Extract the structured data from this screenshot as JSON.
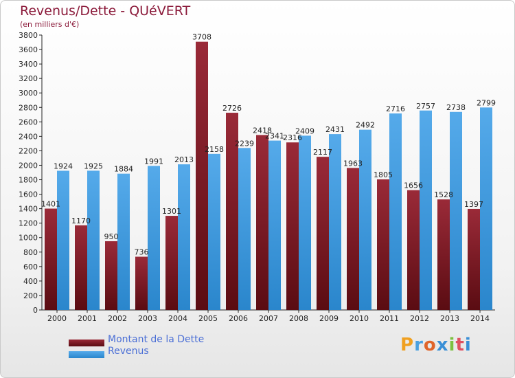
{
  "header": {
    "title": "Revenus/Dette - QUéVERT",
    "subtitle": "(en milliers d'€)"
  },
  "legend": {
    "debt_label": "Montant de la Dette",
    "revenue_label": "Revenus"
  },
  "logo": {
    "text": "Proxiti"
  },
  "colors": {
    "debt": "#8b2430",
    "revenue": "#3e97dc",
    "title": "#8b1a3a",
    "legend_text": "#4b6fd6"
  },
  "chart_data": {
    "type": "bar",
    "title": "Revenus/Dette - QUéVERT",
    "subtitle": "(en milliers d'€)",
    "categories": [
      "2000",
      "2001",
      "2002",
      "2003",
      "2004",
      "2005",
      "2006",
      "2007",
      "2008",
      "2009",
      "2010",
      "2011",
      "2012",
      "2013",
      "2014"
    ],
    "series": [
      {
        "name": "Montant de la Dette",
        "values": [
          1401,
          1170,
          950,
          736,
          1301,
          3708,
          2726,
          2418,
          2316,
          2117,
          1963,
          1805,
          1656,
          1528,
          1397
        ],
        "labels": [
          "1401",
          "1170",
          "950",
          "736",
          "1301",
          "3708",
          "2726",
          "2418",
          "2316",
          "2117",
          "1963",
          "1805",
          "1656",
          "1528",
          "1397"
        ]
      },
      {
        "name": "Revenus",
        "values": [
          1924,
          1925,
          1884,
          1991,
          2013,
          2158,
          2239,
          2341,
          2409,
          2431,
          2492,
          2716,
          2757,
          2738,
          2799
        ],
        "labels": [
          "1924",
          "1925",
          "1884",
          "1991",
          "2013",
          "2158",
          "2239",
          "2341",
          "2409",
          "2431",
          "2492",
          "2716",
          "2757",
          "2738",
          "2799"
        ]
      }
    ],
    "ylim": [
      0,
      3800
    ],
    "yticks": [
      "0",
      "200",
      "400",
      "600",
      "800",
      "1000",
      "1200",
      "1400",
      "1600",
      "1800",
      "2000",
      "2200",
      "2400",
      "2600",
      "2800",
      "3000",
      "3200",
      "3400",
      "3600",
      "3800"
    ],
    "grid": false,
    "legend_position": "bottom-left"
  }
}
